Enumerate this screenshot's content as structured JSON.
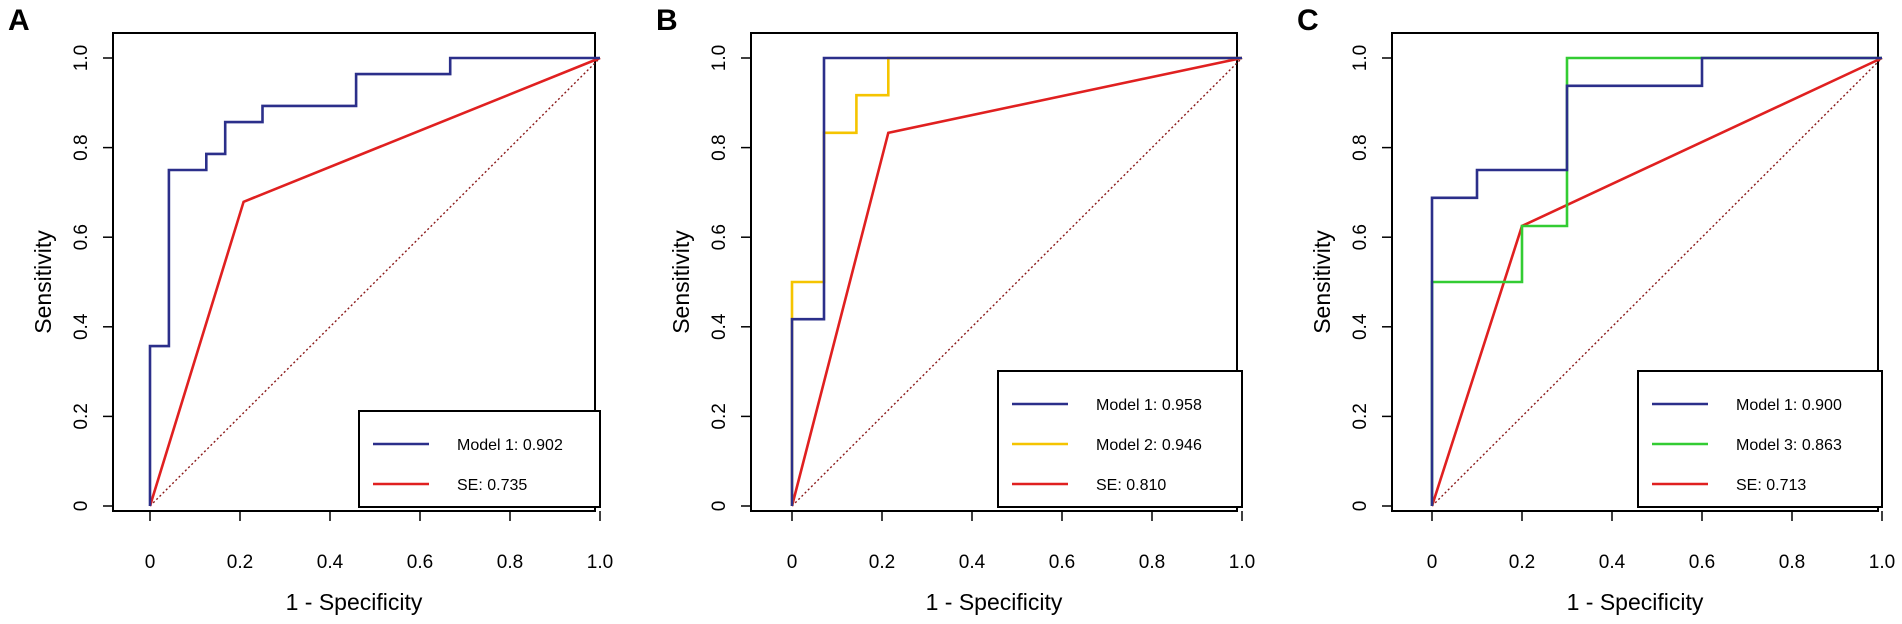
{
  "chart_data": [
    {
      "panel": "A",
      "type": "line",
      "xlabel": "1 - Specificity",
      "ylabel": "Sensitivity",
      "xlim": [
        0,
        1
      ],
      "ylim": [
        0,
        1
      ],
      "x_ticks": [
        "0",
        "0.2",
        "0.4",
        "0.6",
        "0.8",
        "1.0"
      ],
      "y_ticks": [
        "0",
        "0.2",
        "0.4",
        "0.6",
        "0.8",
        "1.0"
      ],
      "legend_position": "bottom-right",
      "series": [
        {
          "name": "Model 1: 0.902",
          "color": "#2b2f8a",
          "x": [
            0,
            0,
            0.042,
            0.042,
            0.125,
            0.125,
            0.167,
            0.167,
            0.25,
            0.25,
            0.458,
            0.458,
            0.667,
            0.667,
            1.0
          ],
          "y": [
            0,
            0.357,
            0.357,
            0.75,
            0.75,
            0.786,
            0.786,
            0.857,
            0.857,
            0.893,
            0.893,
            0.964,
            0.964,
            1.0,
            1.0
          ]
        },
        {
          "name": "SE: 0.735",
          "color": "#e02020",
          "x": [
            0,
            0.208,
            1.0
          ],
          "y": [
            0,
            0.679,
            1.0
          ]
        }
      ]
    },
    {
      "panel": "B",
      "type": "line",
      "xlabel": "1 - Specificity",
      "ylabel": "Sensitivity",
      "xlim": [
        0,
        1
      ],
      "ylim": [
        0,
        1
      ],
      "x_ticks": [
        "0",
        "0.2",
        "0.4",
        "0.6",
        "0.8",
        "1.0"
      ],
      "y_ticks": [
        "0",
        "0.2",
        "0.4",
        "0.6",
        "0.8",
        "1.0"
      ],
      "legend_position": "bottom-right",
      "series": [
        {
          "name": "Model 1: 0.958",
          "color": "#2b2f8a",
          "x": [
            0,
            0,
            0.071,
            0.071,
            1.0
          ],
          "y": [
            0,
            0.417,
            0.417,
            1.0,
            1.0
          ]
        },
        {
          "name": "Model 2: 0.946",
          "color": "#f5c400",
          "x": [
            0,
            0,
            0.071,
            0.071,
            0.143,
            0.143,
            0.214,
            0.214,
            1.0
          ],
          "y": [
            0,
            0.5,
            0.5,
            0.833,
            0.833,
            0.917,
            0.917,
            1.0,
            1.0
          ]
        },
        {
          "name": "SE: 0.810",
          "color": "#e02020",
          "x": [
            0,
            0.214,
            1.0
          ],
          "y": [
            0,
            0.833,
            1.0
          ]
        }
      ]
    },
    {
      "panel": "C",
      "type": "line",
      "xlabel": "1 - Specificity",
      "ylabel": "Sensitivity",
      "xlim": [
        0,
        1
      ],
      "ylim": [
        0,
        1
      ],
      "x_ticks": [
        "0",
        "0.2",
        "0.4",
        "0.6",
        "0.8",
        "1.0"
      ],
      "y_ticks": [
        "0",
        "0.2",
        "0.4",
        "0.6",
        "0.8",
        "1.0"
      ],
      "legend_position": "bottom-right",
      "series": [
        {
          "name": "Model 1: 0.900",
          "color": "#2b2f8a",
          "x": [
            0,
            0,
            0.1,
            0.1,
            0.3,
            0.3,
            0.6,
            0.6,
            1.0
          ],
          "y": [
            0,
            0.688,
            0.688,
            0.75,
            0.75,
            0.938,
            0.938,
            1.0,
            1.0
          ]
        },
        {
          "name": "Model 3: 0.863",
          "color": "#33cc33",
          "x": [
            0,
            0,
            0.2,
            0.2,
            0.3,
            0.3,
            1.0
          ],
          "y": [
            0,
            0.5,
            0.5,
            0.625,
            0.625,
            1.0,
            1.0
          ]
        },
        {
          "name": "SE: 0.713",
          "color": "#e02020",
          "x": [
            0,
            0.2,
            1.0
          ],
          "y": [
            0,
            0.625,
            1.0
          ]
        }
      ]
    }
  ],
  "reference_line": {
    "color": "#8b1a1a"
  }
}
